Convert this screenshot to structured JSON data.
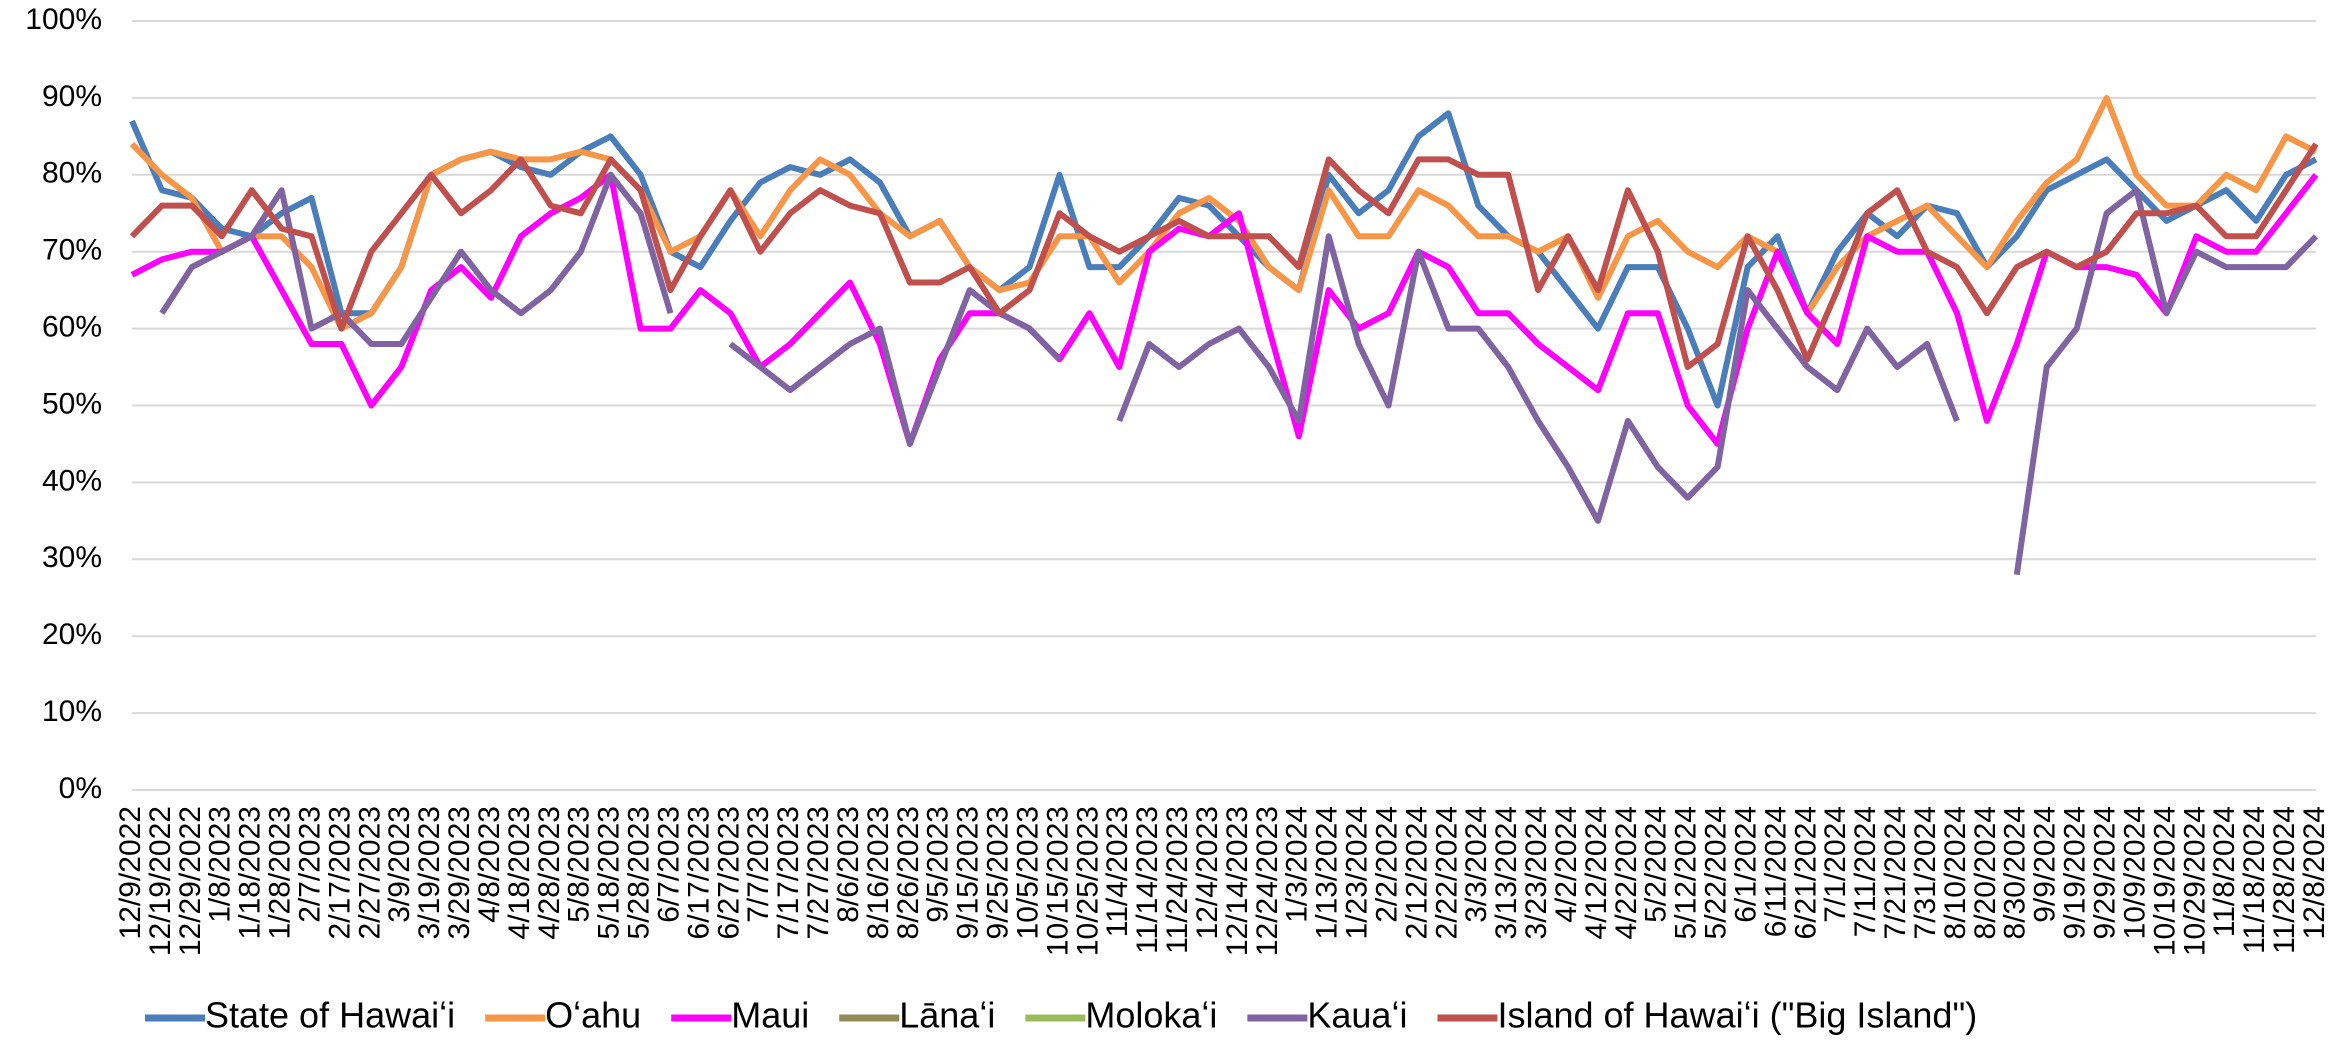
{
  "chart_data": {
    "type": "line",
    "categories": [
      "12/9/2022",
      "12/19/2022",
      "12/29/2022",
      "1/8/2023",
      "1/18/2023",
      "1/28/2023",
      "2/7/2023",
      "2/17/2023",
      "2/27/2023",
      "3/9/2023",
      "3/19/2023",
      "3/29/2023",
      "4/8/2023",
      "4/18/2023",
      "4/28/2023",
      "5/8/2023",
      "5/18/2023",
      "5/28/2023",
      "6/7/2023",
      "6/17/2023",
      "6/27/2023",
      "7/7/2023",
      "7/17/2023",
      "7/27/2023",
      "8/6/2023",
      "8/16/2023",
      "8/26/2023",
      "9/5/2023",
      "9/15/2023",
      "9/25/2023",
      "10/5/2023",
      "10/15/2023",
      "10/25/2023",
      "11/4/2023",
      "11/14/2023",
      "11/24/2023",
      "12/4/2023",
      "12/14/2023",
      "12/24/2023",
      "1/3/2024",
      "1/13/2024",
      "1/23/2024",
      "2/2/2024",
      "2/12/2024",
      "2/22/2024",
      "3/3/2024",
      "3/13/2024",
      "3/23/2024",
      "4/2/2024",
      "4/12/2024",
      "4/22/2024",
      "5/2/2024",
      "5/12/2024",
      "5/22/2024",
      "6/1/2024",
      "6/11/2024",
      "6/21/2024",
      "7/1/2024",
      "7/11/2024",
      "7/21/2024",
      "7/31/2024",
      "8/10/2024",
      "8/20/2024",
      "8/30/2024",
      "9/9/2024",
      "9/19/2024",
      "9/29/2024",
      "10/9/2024",
      "10/19/2024",
      "10/29/2024",
      "11/8/2024",
      "11/18/2024",
      "11/28/2024",
      "12/8/2024"
    ],
    "series": [
      {
        "name": "State of Hawaiʻi",
        "color": "#4a7ebb",
        "values": [
          87,
          78,
          77,
          73,
          72,
          75,
          77,
          62,
          62,
          68,
          80,
          82,
          83,
          81,
          80,
          83,
          85,
          80,
          70,
          68,
          74,
          79,
          81,
          80,
          82,
          79,
          72,
          74,
          68,
          65,
          68,
          80,
          68,
          68,
          72,
          77,
          76,
          72,
          68,
          65,
          80,
          75,
          78,
          85,
          88,
          76,
          72,
          70,
          65,
          60,
          68,
          68,
          60,
          50,
          68,
          72,
          62,
          70,
          75,
          72,
          76,
          75,
          68,
          72,
          78,
          80,
          82,
          78,
          74,
          76,
          78,
          74,
          80,
          82
        ]
      },
      {
        "name": "Oʻahu",
        "color": "#f79646",
        "values": [
          84,
          80,
          77,
          70,
          72,
          72,
          68,
          60,
          62,
          68,
          80,
          82,
          83,
          82,
          82,
          83,
          82,
          78,
          70,
          72,
          78,
          72,
          78,
          82,
          80,
          75,
          72,
          74,
          68,
          65,
          66,
          72,
          72,
          66,
          70,
          75,
          77,
          74,
          68,
          65,
          78,
          72,
          72,
          78,
          76,
          72,
          72,
          70,
          72,
          64,
          72,
          74,
          70,
          68,
          72,
          70,
          62,
          68,
          72,
          74,
          76,
          72,
          68,
          74,
          79,
          82,
          90,
          80,
          76,
          76,
          80,
          78,
          85,
          83
        ]
      },
      {
        "name": "Maui",
        "color": "#ff00ff",
        "values": [
          67,
          69,
          70,
          70,
          72,
          65,
          58,
          58,
          50,
          55,
          65,
          68,
          64,
          72,
          75,
          77,
          80,
          60,
          60,
          65,
          62,
          55,
          58,
          62,
          66,
          58,
          45,
          56,
          62,
          62,
          60,
          56,
          62,
          55,
          70,
          73,
          72,
          75,
          60,
          46,
          65,
          60,
          62,
          70,
          68,
          62,
          62,
          58,
          55,
          52,
          62,
          62,
          50,
          45,
          60,
          70,
          62,
          58,
          72,
          70,
          70,
          62,
          48,
          58,
          70,
          68,
          68,
          67,
          62,
          72,
          70,
          70,
          75,
          80
        ]
      },
      {
        "name": "Lānaʻi",
        "color": "#948a54",
        "values": [
          null,
          null,
          null,
          null,
          null,
          null,
          null,
          null,
          null,
          null,
          null,
          null,
          null,
          null,
          null,
          null,
          null,
          null,
          null,
          null,
          null,
          null,
          null,
          null,
          null,
          null,
          null,
          null,
          null,
          null,
          null,
          null,
          null,
          null,
          null,
          null,
          null,
          null,
          null,
          null,
          null,
          null,
          null,
          null,
          null,
          null,
          null,
          null,
          null,
          null,
          null,
          null,
          null,
          null,
          null,
          null,
          null,
          null,
          null,
          null,
          null,
          null,
          null,
          null,
          null,
          null,
          null,
          null,
          null,
          null,
          null,
          null,
          null,
          null
        ]
      },
      {
        "name": "Molokaʻi",
        "color": "#9bbb59",
        "values": [
          null,
          null,
          null,
          null,
          null,
          null,
          null,
          null,
          null,
          null,
          null,
          null,
          null,
          null,
          null,
          null,
          null,
          null,
          null,
          null,
          null,
          null,
          null,
          null,
          null,
          null,
          null,
          null,
          null,
          null,
          null,
          null,
          null,
          null,
          null,
          null,
          null,
          null,
          null,
          null,
          null,
          null,
          null,
          null,
          null,
          null,
          null,
          null,
          null,
          null,
          null,
          null,
          null,
          null,
          null,
          null,
          null,
          null,
          null,
          null,
          null,
          null,
          null,
          null,
          null,
          null,
          null,
          null,
          null,
          null,
          null,
          null,
          null,
          null
        ]
      },
      {
        "name": "Kauaʻi",
        "color": "#8064a2",
        "values": [
          null,
          62,
          68,
          70,
          72,
          78,
          60,
          62,
          58,
          58,
          64,
          70,
          65,
          62,
          65,
          70,
          80,
          75,
          62,
          null,
          58,
          55,
          52,
          55,
          58,
          60,
          45,
          55,
          65,
          62,
          60,
          56,
          null,
          48,
          58,
          55,
          58,
          60,
          55,
          48,
          72,
          58,
          50,
          70,
          60,
          60,
          55,
          48,
          42,
          35,
          48,
          42,
          38,
          42,
          65,
          60,
          55,
          52,
          60,
          55,
          58,
          48,
          null,
          28,
          55,
          60,
          75,
          78,
          62,
          70,
          68,
          68,
          68,
          72
        ]
      },
      {
        "name": "Island of Hawaiʻi (\"Big Island\")",
        "color": "#c0504d",
        "values": [
          72,
          76,
          76,
          72,
          78,
          73,
          72,
          60,
          70,
          75,
          80,
          75,
          78,
          82,
          76,
          75,
          82,
          78,
          65,
          72,
          78,
          70,
          75,
          78,
          76,
          75,
          66,
          66,
          68,
          62,
          65,
          75,
          72,
          70,
          72,
          74,
          72,
          72,
          72,
          68,
          82,
          78,
          75,
          82,
          82,
          80,
          80,
          65,
          72,
          65,
          78,
          70,
          55,
          58,
          72,
          65,
          56,
          65,
          75,
          78,
          70,
          68,
          62,
          68,
          70,
          68,
          70,
          75,
          75,
          76,
          72,
          72,
          78,
          84
        ]
      }
    ],
    "ylim": [
      0,
      100
    ],
    "yticks": [
      {
        "value": 0,
        "label": "0%"
      },
      {
        "value": 10,
        "label": "10%"
      },
      {
        "value": 20,
        "label": "20%"
      },
      {
        "value": 30,
        "label": "30%"
      },
      {
        "value": 40,
        "label": "40%"
      },
      {
        "value": 50,
        "label": "50%"
      },
      {
        "value": 60,
        "label": "60%"
      },
      {
        "value": 70,
        "label": "70%"
      },
      {
        "value": 80,
        "label": "80%"
      },
      {
        "value": 90,
        "label": "90%"
      },
      {
        "value": 100,
        "label": "100%"
      }
    ],
    "grid": true,
    "legend": "bottom"
  }
}
